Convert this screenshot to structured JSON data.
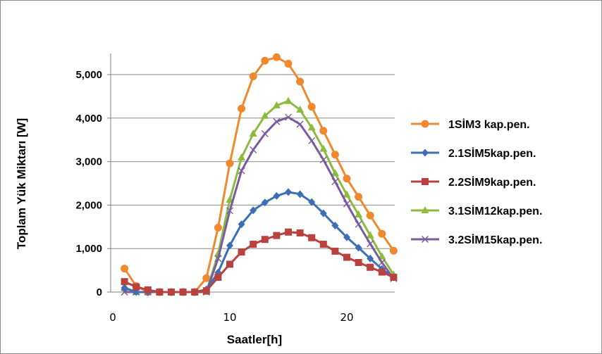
{
  "chart_data": {
    "type": "line",
    "title": "",
    "xlabel": "Saatler[h]",
    "ylabel": "Toplam Yük Miktarı [W]",
    "xlim": [
      0,
      24
    ],
    "ylim": [
      0,
      5500
    ],
    "xticks": [
      0,
      10,
      20
    ],
    "xtick_labels": [
      "0",
      "10",
      "20"
    ],
    "yticks": [
      0,
      1000,
      2000,
      3000,
      4000,
      5000
    ],
    "ytick_labels": [
      "0",
      "1,000",
      "2,000",
      "3,000",
      "4,000",
      "5,000"
    ],
    "grid": "horizontal",
    "legend_position": "right",
    "x": [
      1,
      2,
      3,
      4,
      5,
      6,
      7,
      8,
      9,
      10,
      11,
      12,
      13,
      14,
      15,
      16,
      17,
      18,
      19,
      20,
      21,
      22,
      23,
      24
    ],
    "series": [
      {
        "name": "1SİM3 kap.pen.",
        "color": "#f0882e",
        "marker": "circle",
        "values": [
          540,
          140,
          0,
          0,
          0,
          0,
          0,
          320,
          1480,
          2960,
          4220,
          4960,
          5320,
          5400,
          5250,
          4840,
          4260,
          3710,
          3160,
          2610,
          2190,
          1760,
          1340,
          950
        ]
      },
      {
        "name": "2.1SİM5kap.pen.",
        "color": "#3d6fb6",
        "marker": "diamond",
        "values": [
          100,
          0,
          0,
          0,
          0,
          0,
          0,
          60,
          450,
          1070,
          1560,
          1880,
          2060,
          2210,
          2300,
          2250,
          2070,
          1810,
          1530,
          1260,
          1020,
          770,
          530,
          340
        ]
      },
      {
        "name": "2.2SİM9kap.pen.",
        "color": "#b9423e",
        "marker": "square",
        "values": [
          240,
          120,
          50,
          0,
          0,
          0,
          0,
          30,
          340,
          640,
          920,
          1100,
          1210,
          1300,
          1380,
          1360,
          1250,
          1100,
          940,
          800,
          680,
          570,
          460,
          340
        ]
      },
      {
        "name": "3.1SİM12kap.pen.",
        "color": "#8cbb3e",
        "marker": "triangle",
        "values": [
          90,
          0,
          0,
          0,
          0,
          0,
          0,
          0,
          880,
          2120,
          3090,
          3640,
          4050,
          4290,
          4390,
          4190,
          3780,
          3290,
          2730,
          2240,
          1780,
          1300,
          820,
          400
        ]
      },
      {
        "name": "3.2SİM15kap.pen.",
        "color": "#7a5aa0",
        "marker": "x",
        "values": [
          0,
          0,
          0,
          0,
          0,
          0,
          0,
          0,
          770,
          1870,
          2790,
          3270,
          3640,
          3920,
          4020,
          3860,
          3480,
          3040,
          2540,
          2030,
          1560,
          1110,
          680,
          310
        ]
      }
    ]
  }
}
